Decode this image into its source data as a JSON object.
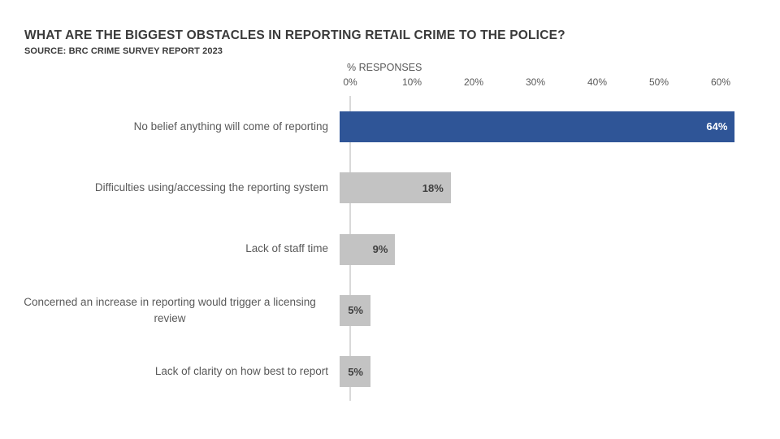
{
  "header": {
    "title": "WHAT ARE THE BIGGEST OBSTACLES IN REPORTING RETAIL CRIME TO THE POLICE?",
    "source": "SOURCE: BRC CRIME SURVEY REPORT 2023"
  },
  "chart_data": {
    "type": "bar",
    "orientation": "horizontal",
    "title": "WHAT ARE THE BIGGEST OBSTACLES IN REPORTING RETAIL CRIME TO THE POLICE?",
    "subtitle": "SOURCE: BRC CRIME SURVEY REPORT 2023",
    "xlabel": "% RESPONSES",
    "ylabel": "",
    "xlim": [
      0,
      60
    ],
    "grid": false,
    "legend": false,
    "categories": [
      "No belief anything will come of reporting",
      "Difficulties using/accessing the reporting system",
      "Lack of staff time",
      "Concerned an increase in reporting would trigger a licensing review",
      "Lack of clarity on how best to report"
    ],
    "values": [
      64,
      18,
      9,
      5,
      5
    ],
    "value_labels": [
      "64%",
      "18%",
      "9%",
      "5%",
      "5%"
    ],
    "ticks": [
      {
        "value": 0,
        "label": "0%"
      },
      {
        "value": 10,
        "label": "10%"
      },
      {
        "value": 20,
        "label": "20%"
      },
      {
        "value": 30,
        "label": "30%"
      },
      {
        "value": 40,
        "label": "40%"
      },
      {
        "value": 50,
        "label": "50%"
      },
      {
        "value": 60,
        "label": "60%"
      }
    ],
    "colors": {
      "highlight_bar": "#2F5597",
      "default_bar": "#C3C3C3",
      "axis_line": "#D9D9D9",
      "label_text": "#595959",
      "title_text": "#3A3A3A"
    },
    "bar_colors": [
      "#2F5597",
      "#C3C3C3",
      "#C3C3C3",
      "#C3C3C3",
      "#C3C3C3"
    ],
    "value_label_colors": [
      "#FFFFFF",
      "#3F3F3F",
      "#3F3F3F",
      "#3F3F3F",
      "#3F3F3F"
    ]
  }
}
